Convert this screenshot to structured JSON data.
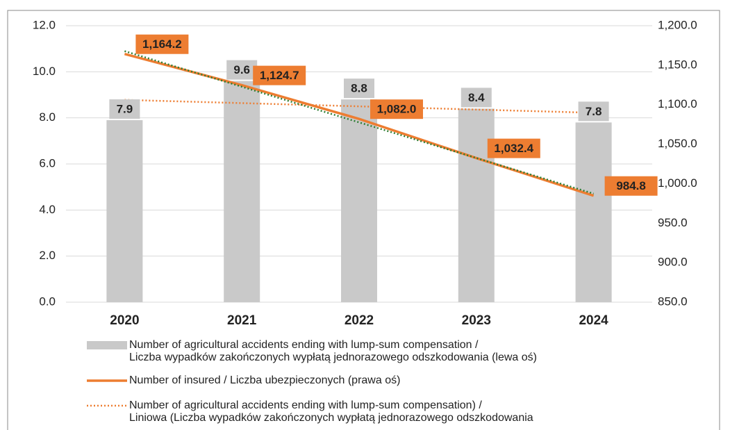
{
  "chart_data": {
    "type": "combo",
    "categories": [
      "2020",
      "2021",
      "2022",
      "2023",
      "2024"
    ],
    "series": [
      {
        "name": "Number of agricultural accidents ending with lump-sum compensation /\nLiczba wypadków zakończonych wypłatą jednorazowego odszkodowania (lewa oś)",
        "type": "bar",
        "color": "#c9c9c9",
        "axis": "y",
        "values": [
          7.9,
          9.6,
          8.8,
          8.4,
          7.8
        ]
      },
      {
        "name": "Number of insured / Liczba ubezpieczonych (prawa oś)",
        "type": "line",
        "style": "solid",
        "color": "#ed7d31",
        "axis": "y2",
        "values": [
          1164.2,
          1124.7,
          1082.0,
          1032.4,
          984.8
        ],
        "value_labels": [
          "1,164.2",
          "1,124.7",
          "1,082.0",
          "1,032.4",
          "984.8"
        ]
      },
      {
        "name": "Number of agricultural accidents ending with lump-sum compensation) /\nLiniowa (Liczba wypadków zakończonych wypłatą jednorazowego odszkodowania",
        "type": "line",
        "style": "dotted",
        "color": "#ed7d31",
        "axis": "y",
        "values": [
          8.78,
          8.64,
          8.5,
          8.36,
          8.22
        ]
      },
      {
        "type": "line",
        "style": "dotted",
        "color": "#2e7d32",
        "axis": "y2",
        "values": [
          1167.84,
          1122.73,
          1077.62,
          1032.51,
          987.4
        ]
      }
    ],
    "ylim": [
      0,
      12
    ],
    "yticks": [
      {
        "value": 0,
        "label": "0.0"
      },
      {
        "value": 2,
        "label": "2.0"
      },
      {
        "value": 4,
        "label": "4.0"
      },
      {
        "value": 6,
        "label": "6.0"
      },
      {
        "value": 8,
        "label": "8.0"
      },
      {
        "value": 10,
        "label": "10.0"
      },
      {
        "value": 12,
        "label": "12.0"
      }
    ],
    "y2lim": [
      850,
      1200
    ],
    "y2ticks": [
      {
        "value": 850,
        "label": "850.0"
      },
      {
        "value": 900,
        "label": "900.0"
      },
      {
        "value": 950,
        "label": "950.0"
      },
      {
        "value": 1000,
        "label": "1,000.0"
      },
      {
        "value": 1050,
        "label": "1,050.0"
      },
      {
        "value": 1100,
        "label": "1,100.0"
      },
      {
        "value": 1150,
        "label": "1,150.0"
      },
      {
        "value": 1200,
        "label": "1,200.0"
      }
    ],
    "grid": true
  }
}
